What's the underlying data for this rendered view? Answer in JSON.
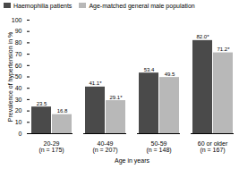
{
  "chart_data": {
    "type": "bar",
    "categories": [
      "20-29 (n = 175)",
      "40-49 (n = 207)",
      "50-59 (n = 148)",
      "60 or older (n = 167)"
    ],
    "series": [
      {
        "name": "Haemophilia patients",
        "color": "#4a4a4a",
        "values": [
          23.5,
          41.1,
          53.4,
          82.0
        ],
        "value_labels": [
          "23.5",
          "41.1*",
          "53.4",
          "82.0*"
        ]
      },
      {
        "name": "Age-matched general male population",
        "color": "#b8b8b8",
        "values": [
          16.8,
          29.1,
          49.5,
          71.2
        ],
        "value_labels": [
          "16.8",
          "29.1*",
          "49.5",
          "71.2*"
        ]
      }
    ],
    "xlabel": "Age in years",
    "ylabel": "Prevalence of hypertension in %",
    "ylim": [
      0,
      100
    ],
    "yticks": [
      0,
      10,
      20,
      30,
      40,
      50,
      60,
      70,
      80,
      90,
      100
    ],
    "data_labels": true,
    "legend": "upper left",
    "grid": false
  }
}
